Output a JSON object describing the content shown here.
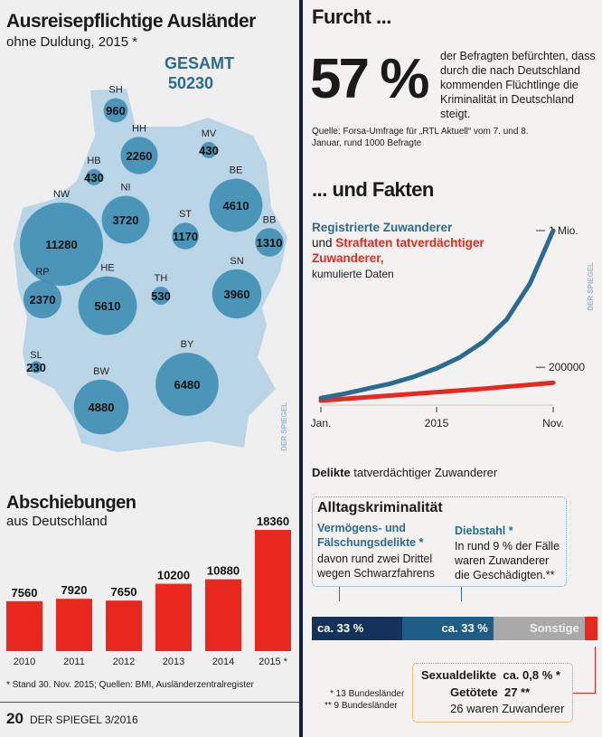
{
  "map": {
    "title": "Ausreisepflichtige Ausländer",
    "subtitle": "ohne Duldung, 2015 *",
    "total_label": "GESAMT",
    "total_value": "50230",
    "watermark": "DER SPIEGEL",
    "map_color": "#b9d5e6",
    "bubble_color": "#3f8fb3",
    "states": [
      {
        "code": "SH",
        "value": 960
      },
      {
        "code": "HH",
        "value": 2260
      },
      {
        "code": "MV",
        "value": 430
      },
      {
        "code": "HB",
        "value": 430
      },
      {
        "code": "NI",
        "value": 3720
      },
      {
        "code": "NW",
        "value": 11280
      },
      {
        "code": "ST",
        "value": 1170
      },
      {
        "code": "BE",
        "value": 4610
      },
      {
        "code": "BB",
        "value": 1310
      },
      {
        "code": "HE",
        "value": 5610
      },
      {
        "code": "TH",
        "value": 530
      },
      {
        "code": "SN",
        "value": 3960
      },
      {
        "code": "RP",
        "value": 2370
      },
      {
        "code": "SL",
        "value": 230
      },
      {
        "code": "BW",
        "value": 4880
      },
      {
        "code": "BY",
        "value": 6480
      }
    ]
  },
  "chart_data": [
    {
      "type": "bar",
      "title": "Abschiebungen",
      "subtitle": "aus Deutschland",
      "categories": [
        "2010",
        "2011",
        "2012",
        "2013",
        "2014",
        "2015 *"
      ],
      "values": [
        7560,
        7920,
        7650,
        10200,
        10880,
        18360
      ],
      "value_labels": [
        "7560",
        "7920",
        "7650",
        "10200",
        "10880",
        "18360"
      ],
      "color": "#e8281e",
      "footnote": "* Stand 30. Nov. 2015; Quellen: BMI, Ausländerzentralregister"
    },
    {
      "type": "line",
      "title_parts": [
        "Registrierte Zuwanderer",
        "und",
        "Straftaten tatverdächtiger Zuwanderer,",
        "kumulierte Daten"
      ],
      "x_ticks": [
        "Jan.",
        "2015",
        "Nov."
      ],
      "y_ticks": [
        {
          "value": 1000000,
          "label": "1 Mio."
        },
        {
          "value": 200000,
          "label": "200000"
        }
      ],
      "ylim": [
        0,
        1000000
      ],
      "x": [
        "Jan",
        "Feb",
        "Mar",
        "Apr",
        "May",
        "Jun",
        "Jul",
        "Aug",
        "Sep",
        "Oct",
        "Nov"
      ],
      "series": [
        {
          "name": "Registrierte Zuwanderer",
          "color": "#2a6b8f",
          "values": [
            20000,
            45000,
            75000,
            105000,
            145000,
            195000,
            260000,
            350000,
            480000,
            690000,
            1000000
          ]
        },
        {
          "name": "Straftaten tatverdächtiger Zuwanderer",
          "color": "#e8281e",
          "values": [
            5000,
            15000,
            25000,
            35000,
            45000,
            55000,
            65000,
            75000,
            87000,
            98000,
            110000
          ]
        }
      ],
      "watermark": "DER SPIEGEL"
    },
    {
      "type": "bar",
      "stacked": true,
      "segments": [
        {
          "label": "ca. 33 %",
          "value": 33,
          "color": "#15325a"
        },
        {
          "label": "ca. 33 %",
          "value": 33,
          "color": "#1f5d86"
        },
        {
          "label": "Sonstige",
          "value": 33.2,
          "color": "#a9a9a9"
        },
        {
          "label": "",
          "value": 0.8,
          "color": "#e8281e"
        }
      ]
    }
  ],
  "fear": {
    "title": "Furcht ...",
    "percent": "57 %",
    "text": "der Befragten befürchten, dass durch die nach Deutschland kommenden Flüchtlinge die Kriminalität in Deutschland steigt.",
    "source": "Quelle: Forsa-Umfrage für „RTL Aktuell“ vom 7. und 8. Januar, rund 1000 Befragte"
  },
  "facts": {
    "title": "... und Fakten",
    "delikte_bold": "Delikte",
    "delikte_rest": "tatverdächtiger Zuwanderer",
    "box_title": "Alltagskriminalität",
    "col1_head": "Vermögens- und Fälschungsdelikte *",
    "col1_text": "davon rund zwei Drittel wegen Schwarzfahrens",
    "col2_head": "Diebstahl *",
    "col2_text": "In rund 9 % der Fälle waren Zuwanderer die Geschädigten.**",
    "note1": "* 13 Bundesländer",
    "note2": "** 9 Bundesländer",
    "sex_label": "Sexualdelikte",
    "sex_value": "ca. 0,8 % *",
    "killed_label": "Getötete",
    "killed_value": "27 **",
    "killed_note": "26 waren Zuwanderer"
  },
  "footer": {
    "page": "20",
    "magazine": "DER SPIEGEL 3/2016"
  }
}
